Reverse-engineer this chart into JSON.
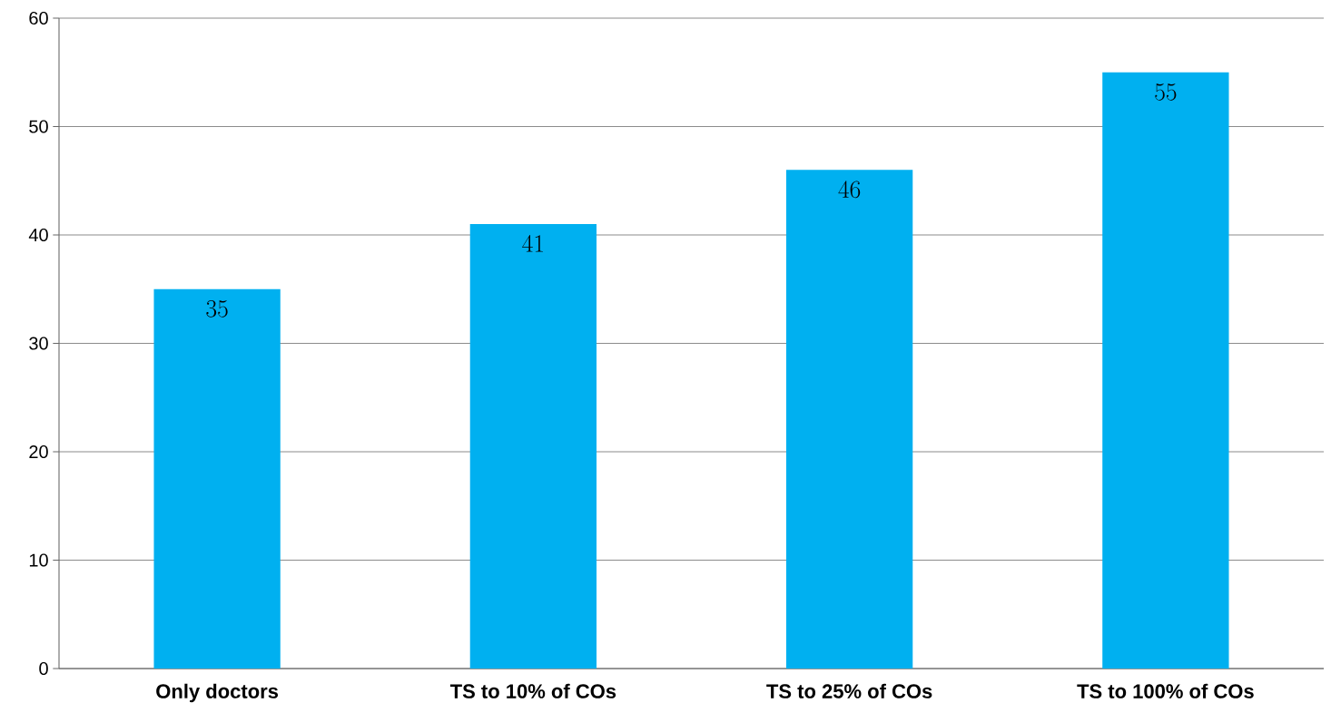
{
  "chart_data": {
    "type": "bar",
    "categories": [
      "Only doctors",
      "TS to 10% of COs",
      "TS to 25% of COs",
      "TS to 100% of COs"
    ],
    "values": [
      35,
      41,
      46,
      55
    ],
    "color": "#00b0f0",
    "ylim": [
      0,
      60
    ],
    "yticks": [
      0,
      10,
      20,
      30,
      40,
      50,
      60
    ],
    "grid": "y",
    "data_labels": true
  }
}
